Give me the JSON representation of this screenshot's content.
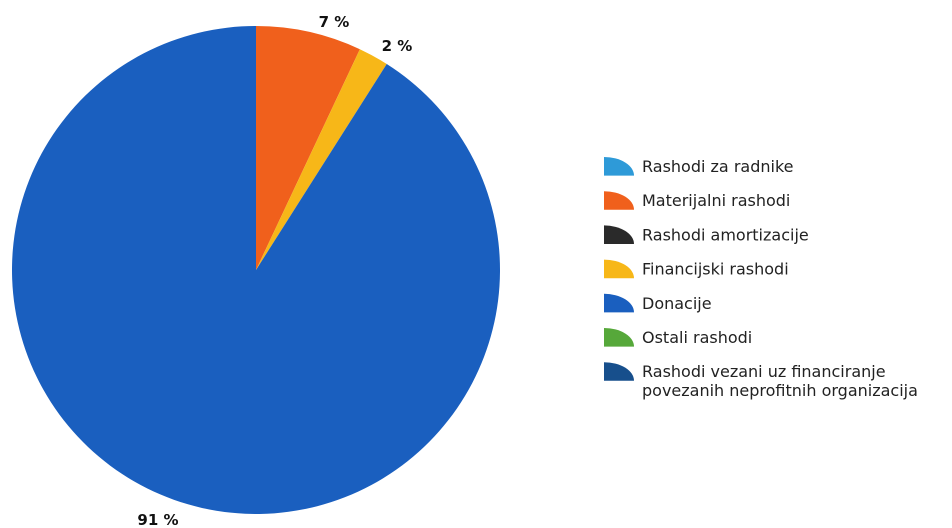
{
  "chart_data": {
    "type": "pie",
    "title": "",
    "categories": [
      "Rashodi za radnike",
      "Materijalni rashodi",
      "Rashodi amortizacije",
      "Financijski rashodi",
      "Donacije",
      "Ostali rashodi",
      "Rashodi vezani uz financiranje povezanih neprofitnih organizacija"
    ],
    "values": [
      0,
      7,
      0,
      2,
      91,
      0,
      0
    ],
    "value_labels": [
      "",
      "7 %",
      "",
      "2 %",
      "91 %",
      "",
      ""
    ],
    "colors": [
      "#2e9ad8",
      "#f0601c",
      "#2a2a2a",
      "#f7b718",
      "#1a5fbf",
      "#56a83a",
      "#174f8c"
    ],
    "legend_placement": "right",
    "legend": [
      {
        "lines": [
          "Rashodi za radnike"
        ]
      },
      {
        "lines": [
          "Materijalni rashodi"
        ]
      },
      {
        "lines": [
          "Rashodi amortizacije"
        ]
      },
      {
        "lines": [
          "Financijski rashodi"
        ]
      },
      {
        "lines": [
          "Donacije"
        ]
      },
      {
        "lines": [
          "Ostali rashodi"
        ]
      },
      {
        "lines": [
          "Rashodi vezani uz financiranje",
          "povezanih neprofitnih organizacija"
        ]
      }
    ]
  }
}
